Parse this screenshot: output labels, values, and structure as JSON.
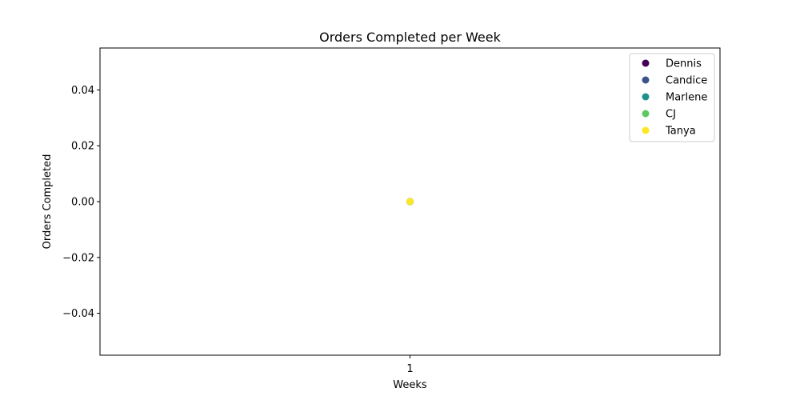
{
  "chart_data": {
    "type": "scatter",
    "title": "Orders Completed per Week",
    "xlabel": "Weeks",
    "ylabel": "Orders Completed",
    "x_ticks": [
      1
    ],
    "xlim": [
      0.9,
      1.1
    ],
    "y_ticks": [
      -0.04,
      -0.02,
      0.0,
      0.02,
      0.04
    ],
    "y_tick_labels": [
      "−0.04",
      "−0.02",
      "0.00",
      "0.02",
      "0.04"
    ],
    "ylim": [
      -0.055,
      0.055
    ],
    "grid": false,
    "legend_position": "top-right",
    "series": [
      {
        "name": "Dennis",
        "color": "#440154",
        "x": [
          1
        ],
        "y": [
          0
        ]
      },
      {
        "name": "Candice",
        "color": "#3b528b",
        "x": [
          1
        ],
        "y": [
          0
        ]
      },
      {
        "name": "Marlene",
        "color": "#21918c",
        "x": [
          1
        ],
        "y": [
          0
        ]
      },
      {
        "name": "CJ",
        "color": "#5ec962",
        "x": [
          1
        ],
        "y": [
          0
        ]
      },
      {
        "name": "Tanya",
        "color": "#fde725",
        "x": [
          1
        ],
        "y": [
          0
        ]
      }
    ]
  }
}
